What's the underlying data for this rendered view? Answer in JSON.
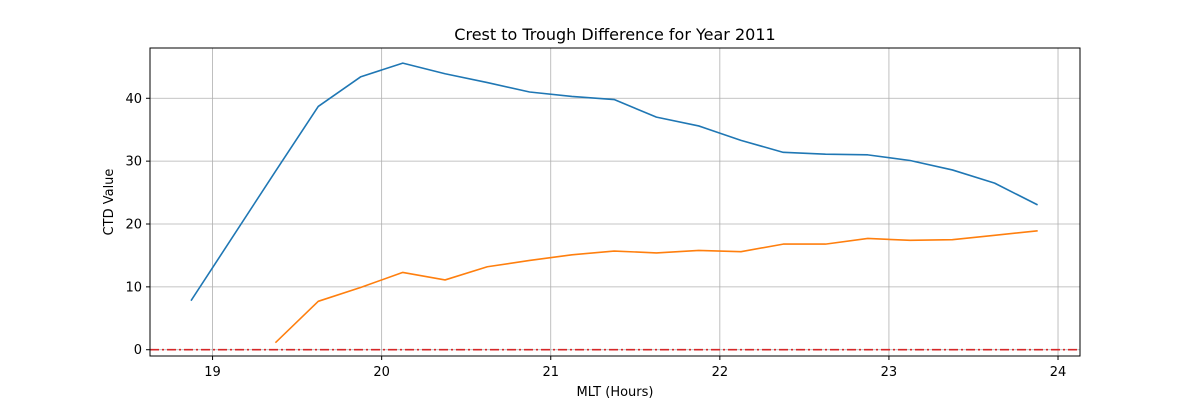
{
  "chart_data": {
    "type": "line",
    "title": "Crest to Trough Difference for Year 2011",
    "xlabel": "MLT (Hours)",
    "ylabel": "CTD Value",
    "xlim": [
      18.63,
      24.13
    ],
    "ylim": [
      -1,
      48
    ],
    "xticks": [
      19,
      20,
      21,
      22,
      23,
      24
    ],
    "yticks": [
      0,
      10,
      20,
      30,
      40
    ],
    "grid": true,
    "series": [
      {
        "color": "#1f77b4",
        "x": [
          18.875,
          19.375,
          19.625,
          19.875,
          20.125,
          20.375,
          20.625,
          20.875,
          21.125,
          21.375,
          21.625,
          21.875,
          22.125,
          22.375,
          22.625,
          22.875,
          23.125,
          23.375,
          23.625,
          23.875
        ],
        "y": [
          7.9,
          28.5,
          38.7,
          43.4,
          45.6,
          43.9,
          42.5,
          41.0,
          40.3,
          39.8,
          37.0,
          35.6,
          33.3,
          31.4,
          31.1,
          31.0,
          30.1,
          28.6,
          26.5,
          23.1
        ]
      },
      {
        "color": "#ff7f0e",
        "x": [
          19.375,
          19.625,
          19.875,
          20.125,
          20.375,
          20.625,
          20.875,
          21.125,
          21.375,
          21.625,
          21.875,
          22.125,
          22.375,
          22.625,
          22.875,
          23.125,
          23.375,
          23.625,
          23.875
        ],
        "y": [
          1.2,
          7.7,
          9.9,
          12.3,
          11.1,
          13.2,
          14.2,
          15.1,
          15.7,
          15.4,
          15.8,
          15.6,
          16.8,
          16.8,
          17.7,
          17.4,
          17.5,
          18.2,
          18.9
        ]
      }
    ],
    "reference_line": {
      "y": 0,
      "color": "#d62728",
      "style": "dash-dot"
    }
  }
}
